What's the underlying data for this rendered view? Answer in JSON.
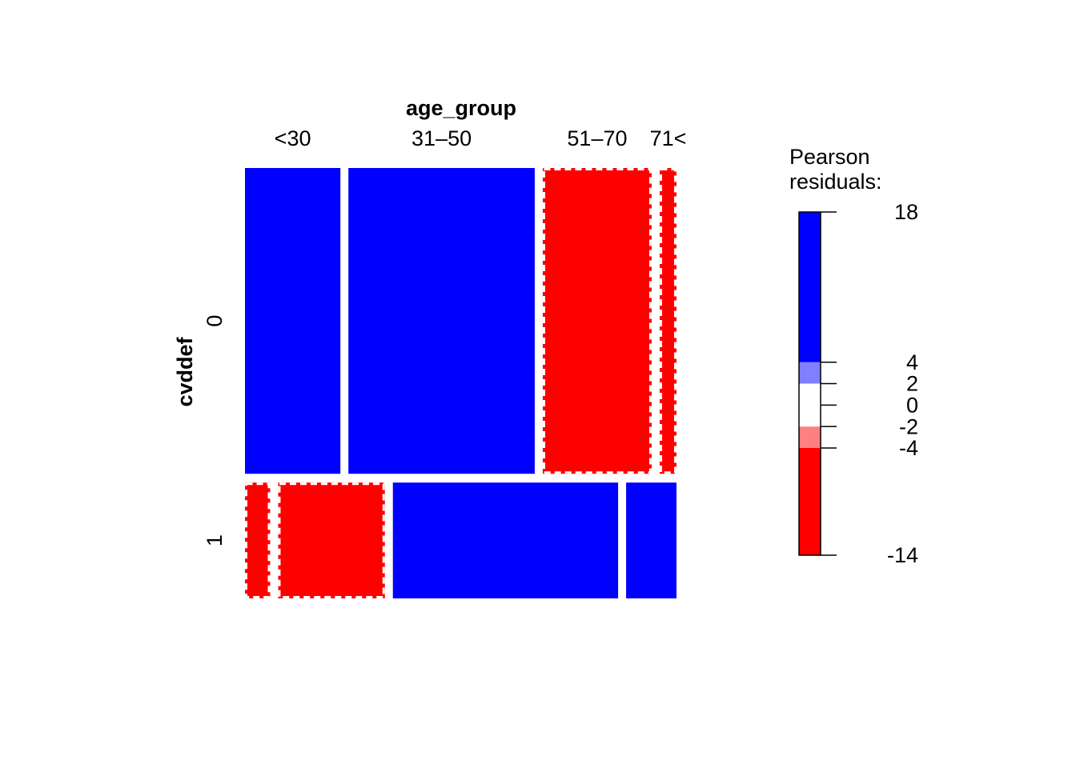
{
  "chart_data": {
    "type": "mosaic",
    "x_label": "age_group",
    "y_label": "cvddef",
    "columns": [
      "<30",
      "31–50",
      "51–70",
      "71<"
    ],
    "series": [
      {
        "name": "0",
        "values": [
          17.0,
          33.2,
          19.4,
          3.0
        ],
        "residuals": [
          12,
          15,
          -9,
          -6
        ]
      },
      {
        "name": "1",
        "values": [
          1.7,
          7.2,
          15.2,
          3.4
        ],
        "residuals": [
          -7,
          -14,
          18,
          6
        ]
      }
    ],
    "legend": {
      "title": [
        "Pearson",
        "residuals:"
      ],
      "lim": [
        -14,
        18
      ],
      "ticks": [
        -14,
        -4,
        -2,
        0,
        2,
        4,
        18
      ],
      "bands": [
        {
          "from": -14,
          "to": -4,
          "color": "#ff0000"
        },
        {
          "from": -4,
          "to": -2,
          "color": "#ff8080"
        },
        {
          "from": -2,
          "to": 2,
          "color": "#ffffff"
        },
        {
          "from": 2,
          "to": 4,
          "color": "#8080ff"
        },
        {
          "from": 4,
          "to": 18,
          "color": "#0000ff"
        }
      ]
    }
  }
}
